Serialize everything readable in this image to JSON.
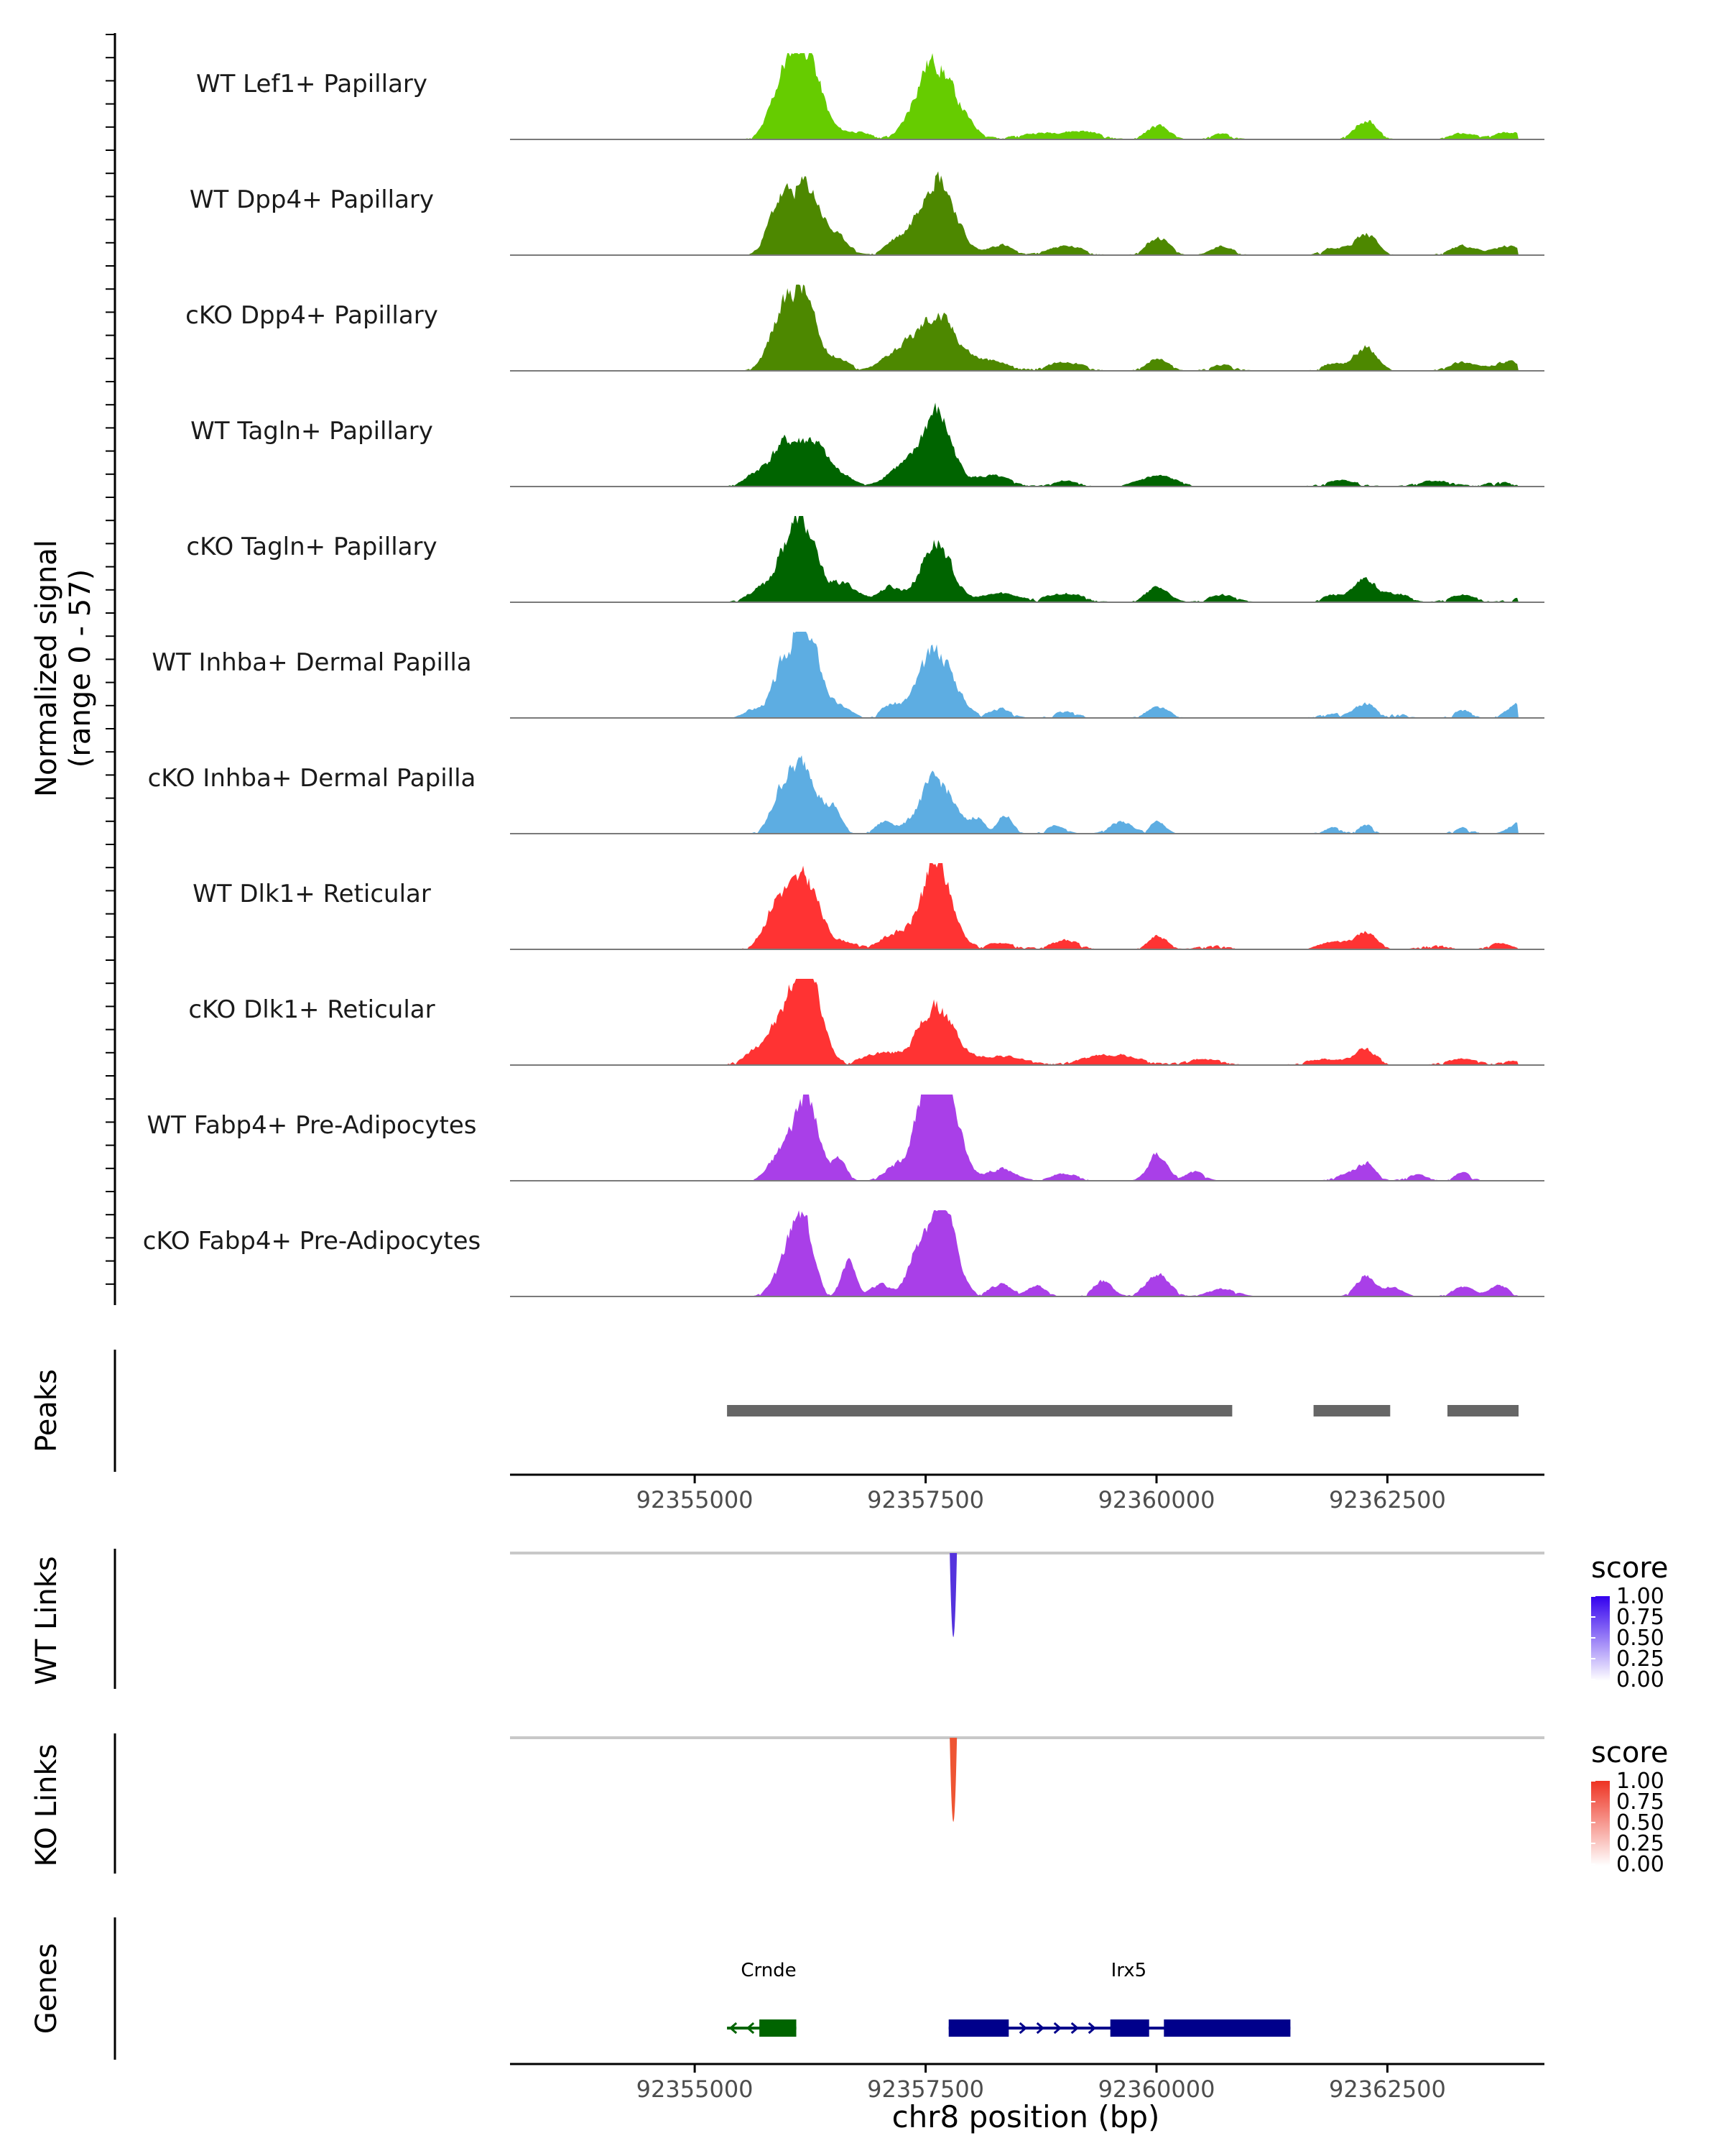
{
  "chart_data": {
    "type": "area",
    "chromosome": "chr8",
    "xlim": [
      92353000,
      92364200
    ],
    "coverage": {
      "ylabel": "Normalized signal",
      "ylabel_range": "(range 0 - 57)",
      "ylim": [
        0,
        57
      ],
      "tracks": [
        {
          "name": "WT Lef1+ Papillary",
          "color": "#66CC00",
          "seed": 11,
          "peaks": [
            [
              92355950,
              36,
              140
            ],
            [
              92356200,
              54,
              150
            ],
            [
              92356700,
              5,
              200
            ],
            [
              92357550,
              50,
              180
            ],
            [
              92357850,
              12,
              160
            ],
            [
              92358700,
              4,
              250
            ],
            [
              92359200,
              5,
              200
            ],
            [
              92360000,
              9,
              120
            ],
            [
              92360700,
              4,
              120
            ],
            [
              92362250,
              13,
              120
            ],
            [
              92363300,
              4,
              150
            ],
            [
              92363800,
              5,
              150
            ]
          ]
        },
        {
          "name": "WT Dpp4+ Papillary",
          "color": "#4D8800",
          "seed": 23,
          "peaks": [
            [
              92355900,
              32,
              120
            ],
            [
              92356200,
              45,
              150
            ],
            [
              92356550,
              10,
              120
            ],
            [
              92357150,
              8,
              120
            ],
            [
              92357600,
              53,
              190
            ],
            [
              92358300,
              7,
              120
            ],
            [
              92359000,
              6,
              200
            ],
            [
              92360000,
              12,
              120
            ],
            [
              92360700,
              6,
              120
            ],
            [
              92361900,
              5,
              120
            ],
            [
              92362250,
              14,
              120
            ],
            [
              92363300,
              6,
              150
            ],
            [
              92363800,
              6,
              150
            ]
          ]
        },
        {
          "name": "cKO Dpp4+ Papillary",
          "color": "#4D8800",
          "seed": 37,
          "peaks": [
            [
              92355900,
              28,
              130
            ],
            [
              92356150,
              52,
              140
            ],
            [
              92356550,
              8,
              120
            ],
            [
              92357150,
              10,
              150
            ],
            [
              92357600,
              37,
              220
            ],
            [
              92358200,
              6,
              200
            ],
            [
              92359000,
              6,
              200
            ],
            [
              92360000,
              8,
              120
            ],
            [
              92360700,
              4,
              150
            ],
            [
              92361900,
              5,
              120
            ],
            [
              92362250,
              16,
              120
            ],
            [
              92363300,
              6,
              150
            ],
            [
              92363800,
              6,
              150
            ]
          ]
        },
        {
          "name": "WT Tagln+ Papillary",
          "color": "#006400",
          "seed": 41,
          "peaks": [
            [
              92355700,
              10,
              150
            ],
            [
              92355950,
              22,
              120
            ],
            [
              92356250,
              30,
              160
            ],
            [
              92356600,
              6,
              120
            ],
            [
              92357200,
              12,
              150
            ],
            [
              92357600,
              49,
              160
            ],
            [
              92358200,
              7,
              200
            ],
            [
              92359000,
              4,
              150
            ],
            [
              92360000,
              7,
              200
            ],
            [
              92362000,
              4,
              200
            ],
            [
              92363000,
              4,
              200
            ],
            [
              92363700,
              3,
              150
            ]
          ]
        },
        {
          "name": "cKO Tagln+ Papillary",
          "color": "#006400",
          "seed": 53,
          "peaks": [
            [
              92355700,
              8,
              150
            ],
            [
              92355950,
              16,
              120
            ],
            [
              92356150,
              50,
              150
            ],
            [
              92356600,
              12,
              150
            ],
            [
              92357100,
              10,
              120
            ],
            [
              92357600,
              40,
              160
            ],
            [
              92358300,
              6,
              200
            ],
            [
              92359000,
              6,
              200
            ],
            [
              92360000,
              10,
              120
            ],
            [
              92360700,
              5,
              150
            ],
            [
              92361900,
              5,
              120
            ],
            [
              92362250,
              15,
              120
            ],
            [
              92362600,
              6,
              120
            ],
            [
              92363300,
              5,
              150
            ],
            [
              92363900,
              3,
              120
            ]
          ]
        },
        {
          "name": "WT Inhba+ Dermal Papilla",
          "color": "#5DADE2",
          "seed": 67,
          "peaks": [
            [
              92355600,
              5,
              100
            ],
            [
              92355950,
              28,
              130
            ],
            [
              92356200,
              54,
              150
            ],
            [
              92356600,
              6,
              100
            ],
            [
              92357100,
              8,
              100
            ],
            [
              92357600,
              45,
              190
            ],
            [
              92358300,
              6,
              120
            ],
            [
              92359000,
              4,
              150
            ],
            [
              92360000,
              7,
              120
            ],
            [
              92361900,
              3,
              150
            ],
            [
              92362250,
              10,
              100
            ],
            [
              92362600,
              3,
              100
            ],
            [
              92363300,
              5,
              100
            ],
            [
              92363900,
              10,
              120
            ]
          ]
        },
        {
          "name": "cKO Inhba+ Dermal Papilla",
          "color": "#5DADE2",
          "seed": 79,
          "peaks": [
            [
              92355950,
              30,
              120
            ],
            [
              92356200,
              42,
              130
            ],
            [
              92356500,
              15,
              80
            ],
            [
              92357050,
              8,
              100
            ],
            [
              92357600,
              36,
              180
            ],
            [
              92358050,
              10,
              70
            ],
            [
              92358350,
              12,
              80
            ],
            [
              92358900,
              6,
              100
            ],
            [
              92359600,
              8,
              120
            ],
            [
              92360000,
              8,
              80
            ],
            [
              92361900,
              4,
              100
            ],
            [
              92362250,
              6,
              80
            ],
            [
              92363300,
              4,
              100
            ],
            [
              92363900,
              7,
              100
            ]
          ]
        },
        {
          "name": "WT Dlk1+ Reticular",
          "color": "#FF3333",
          "seed": 83,
          "peaks": [
            [
              92355900,
              33,
              140
            ],
            [
              92356200,
              43,
              140
            ],
            [
              92356600,
              5,
              150
            ],
            [
              92357150,
              10,
              150
            ],
            [
              92357600,
              57,
              160
            ],
            [
              92358300,
              4,
              200
            ],
            [
              92359000,
              6,
              150
            ],
            [
              92360000,
              9,
              100
            ],
            [
              92360600,
              3,
              150
            ],
            [
              92361900,
              5,
              150
            ],
            [
              92362250,
              11,
              120
            ],
            [
              92363000,
              3,
              150
            ],
            [
              92363700,
              4,
              120
            ]
          ]
        },
        {
          "name": "cKO Dlk1+ Reticular",
          "color": "#FF3333",
          "seed": 97,
          "peaks": [
            [
              92355800,
              14,
              200
            ],
            [
              92356100,
              26,
              200
            ],
            [
              92356200,
              44,
              140
            ],
            [
              92357000,
              8,
              200
            ],
            [
              92357600,
              38,
              190
            ],
            [
              92358300,
              6,
              250
            ],
            [
              92359500,
              7,
              300
            ],
            [
              92360500,
              4,
              200
            ],
            [
              92361800,
              4,
              200
            ],
            [
              92362250,
              10,
              120
            ],
            [
              92363300,
              4,
              200
            ],
            [
              92363900,
              3,
              150
            ]
          ]
        },
        {
          "name": "WT Fabp4+ Pre-Adipocytes",
          "color": "#A93FE8",
          "seed": 101,
          "peaks": [
            [
              92355950,
              20,
              140
            ],
            [
              92356200,
              54,
              120
            ],
            [
              92356550,
              14,
              80
            ],
            [
              92357100,
              6,
              100
            ],
            [
              92357500,
              44,
              170
            ],
            [
              92357700,
              52,
              150
            ],
            [
              92358300,
              8,
              150
            ],
            [
              92359000,
              5,
              150
            ],
            [
              92360000,
              18,
              100
            ],
            [
              92360400,
              6,
              100
            ],
            [
              92362000,
              4,
              100
            ],
            [
              92362250,
              12,
              100
            ],
            [
              92362800,
              4,
              120
            ],
            [
              92363300,
              5,
              100
            ]
          ]
        },
        {
          "name": "cKO Fabp4+ Pre-Adipocytes",
          "color": "#A93FE8",
          "seed": 113,
          "peaks": [
            [
              92355950,
              18,
              120
            ],
            [
              92356150,
              54,
              110
            ],
            [
              92356650,
              27,
              70
            ],
            [
              92357000,
              8,
              100
            ],
            [
              92357450,
              35,
              130
            ],
            [
              92357700,
              50,
              130
            ],
            [
              92358300,
              8,
              120
            ],
            [
              92358700,
              7,
              100
            ],
            [
              92359400,
              10,
              100
            ],
            [
              92360000,
              14,
              130
            ],
            [
              92360700,
              5,
              150
            ],
            [
              92362250,
              14,
              100
            ],
            [
              92362550,
              6,
              100
            ],
            [
              92363300,
              6,
              120
            ],
            [
              92363700,
              7,
              100
            ]
          ]
        }
      ]
    },
    "peaks_track": {
      "label": "Peaks",
      "regions": [
        [
          92355350,
          92360820
        ],
        [
          92361700,
          92362530
        ],
        [
          92363150,
          92363920
        ]
      ]
    },
    "axis": {
      "ticks": [
        92355000,
        92357500,
        92360000,
        92362500
      ],
      "tick_labels": [
        "92355000",
        "92357500",
        "92360000",
        "92362500"
      ]
    },
    "links": [
      {
        "label": "WT Links",
        "position": 92357800,
        "score": 1.0,
        "color": "#5533DD",
        "legend": {
          "title": "score",
          "labels": [
            "1.00",
            "0.75",
            "0.50",
            "0.25",
            "0.00"
          ],
          "color_high": "#3300EE",
          "color_low": "#FFFFFF"
        }
      },
      {
        "label": "KO Links",
        "position": 92357800,
        "score": 1.0,
        "color": "#EE5533",
        "legend": {
          "title": "score",
          "labels": [
            "1.00",
            "0.75",
            "0.50",
            "0.25",
            "0.00"
          ],
          "color_high": "#EE3322",
          "color_low": "#FFFFFF"
        }
      }
    ],
    "genes": {
      "label": "Genes",
      "items": [
        {
          "name": "Crnde",
          "color": "#006400",
          "strand": "-",
          "start": 92355350,
          "end": 92356100,
          "exons": [
            [
              92355700,
              92356100
            ]
          ],
          "label_pos": 92355800
        },
        {
          "name": "Irx5",
          "color": "#00008B",
          "strand": "+",
          "start": 92357750,
          "end": 92361450,
          "exons": [
            [
              92357750,
              92358400
            ],
            [
              92359500,
              92359920
            ],
            [
              92360080,
              92361450
            ]
          ],
          "label_pos": 92359700
        }
      ]
    },
    "xlabel": "chr8 position (bp)"
  }
}
